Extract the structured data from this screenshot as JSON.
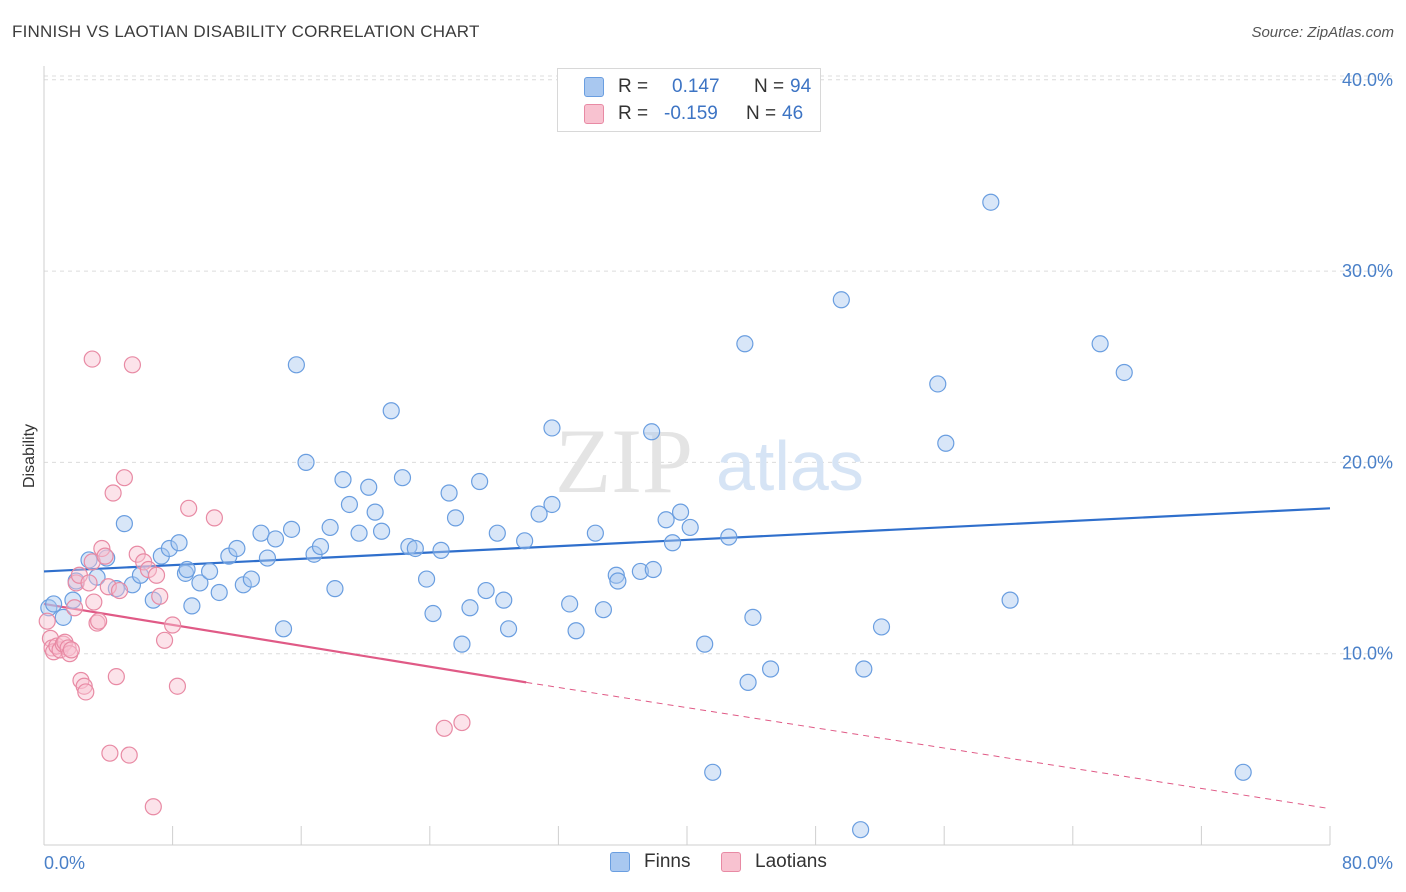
{
  "header": {
    "title": "FINNISH VS LAOTIAN DISABILITY CORRELATION CHART",
    "source": "Source: ZipAtlas.com"
  },
  "watermark": {
    "part1": "ZIP",
    "part2": "atlas"
  },
  "legend": {
    "finns": {
      "r_label": "R =",
      "r_value": "0.147",
      "n_label": "N =",
      "n_value": "94",
      "color": "#a9c8f0",
      "border": "#6a9ee0"
    },
    "laotians": {
      "r_label": "R =",
      "r_value": "-0.159",
      "n_label": "N =",
      "n_value": "46",
      "color": "#f8c2d0",
      "border": "#e88aa4"
    }
  },
  "bottom_legend": {
    "finns": "Finns",
    "laotians": "Laotians"
  },
  "chart_data": {
    "type": "scatter",
    "ylabel": "Disability",
    "xlim": [
      0,
      80
    ],
    "ylim": [
      0,
      41
    ],
    "x_ticks": [
      "0.0%",
      "80.0%"
    ],
    "y_ticks": [
      {
        "value": 10,
        "label": "10.0%"
      },
      {
        "value": 20,
        "label": "20.0%"
      },
      {
        "value": 30,
        "label": "30.0%"
      },
      {
        "value": 40,
        "label": "40.0%"
      }
    ],
    "grid": true,
    "series": [
      {
        "name": "Finns",
        "color": "#6a9ee0",
        "fill": "rgba(169,200,240,0.45)",
        "trend": {
          "x": [
            0,
            80
          ],
          "y": [
            14.3,
            17.6
          ],
          "color": "#2f6fcc"
        },
        "points": [
          [
            0.3,
            12.4
          ],
          [
            0.6,
            12.6
          ],
          [
            1.2,
            11.9
          ],
          [
            1.8,
            12.8
          ],
          [
            2.0,
            13.8
          ],
          [
            2.8,
            14.9
          ],
          [
            3.3,
            14.0
          ],
          [
            3.9,
            15.0
          ],
          [
            4.5,
            13.4
          ],
          [
            5.0,
            16.8
          ],
          [
            5.5,
            13.6
          ],
          [
            6.0,
            14.1
          ],
          [
            6.8,
            12.8
          ],
          [
            7.3,
            15.1
          ],
          [
            7.8,
            15.5
          ],
          [
            8.4,
            15.8
          ],
          [
            8.8,
            14.2
          ],
          [
            9.2,
            12.5
          ],
          [
            9.7,
            13.7
          ],
          [
            10.3,
            14.3
          ],
          [
            10.9,
            13.2
          ],
          [
            11.5,
            15.1
          ],
          [
            12.0,
            15.5
          ],
          [
            12.4,
            13.6
          ],
          [
            12.9,
            13.9
          ],
          [
            13.5,
            16.3
          ],
          [
            13.9,
            15.0
          ],
          [
            14.4,
            16.0
          ],
          [
            14.9,
            11.3
          ],
          [
            15.4,
            16.5
          ],
          [
            15.7,
            25.1
          ],
          [
            16.3,
            20.0
          ],
          [
            16.8,
            15.2
          ],
          [
            17.2,
            15.6
          ],
          [
            17.8,
            16.6
          ],
          [
            18.1,
            13.4
          ],
          [
            18.6,
            19.1
          ],
          [
            19.0,
            17.8
          ],
          [
            19.6,
            16.3
          ],
          [
            20.2,
            18.7
          ],
          [
            20.6,
            17.4
          ],
          [
            21.0,
            16.4
          ],
          [
            21.6,
            22.7
          ],
          [
            22.3,
            19.2
          ],
          [
            22.7,
            15.6
          ],
          [
            23.1,
            15.5
          ],
          [
            23.8,
            13.9
          ],
          [
            24.2,
            12.1
          ],
          [
            24.7,
            15.4
          ],
          [
            25.2,
            18.4
          ],
          [
            25.6,
            17.1
          ],
          [
            26.0,
            10.5
          ],
          [
            26.5,
            12.4
          ],
          [
            27.1,
            19.0
          ],
          [
            27.5,
            13.3
          ],
          [
            28.2,
            16.3
          ],
          [
            28.6,
            12.8
          ],
          [
            28.9,
            11.3
          ],
          [
            29.9,
            15.9
          ],
          [
            30.8,
            17.3
          ],
          [
            31.6,
            21.8
          ],
          [
            31.6,
            17.8
          ],
          [
            32.7,
            12.6
          ],
          [
            33.1,
            11.2
          ],
          [
            34.3,
            16.3
          ],
          [
            34.8,
            12.3
          ],
          [
            35.6,
            14.1
          ],
          [
            35.7,
            13.8
          ],
          [
            37.1,
            14.3
          ],
          [
            37.8,
            21.6
          ],
          [
            37.9,
            14.4
          ],
          [
            38.7,
            17.0
          ],
          [
            39.1,
            15.8
          ],
          [
            39.6,
            17.4
          ],
          [
            40.2,
            16.6
          ],
          [
            41.1,
            10.5
          ],
          [
            41.6,
            3.8
          ],
          [
            42.6,
            16.1
          ],
          [
            43.6,
            26.2
          ],
          [
            43.8,
            8.5
          ],
          [
            44.1,
            11.9
          ],
          [
            45.2,
            9.2
          ],
          [
            49.6,
            28.5
          ],
          [
            51.0,
            9.2
          ],
          [
            52.1,
            11.4
          ],
          [
            55.6,
            24.1
          ],
          [
            56.1,
            21.0
          ],
          [
            58.9,
            33.6
          ],
          [
            60.1,
            12.8
          ],
          [
            65.7,
            26.2
          ],
          [
            67.2,
            24.7
          ],
          [
            74.6,
            3.8
          ],
          [
            50.8,
            0.8
          ],
          [
            8.9,
            14.4
          ]
        ]
      },
      {
        "name": "Laotians",
        "color": "#e88aa4",
        "fill": "rgba(248,194,208,0.45)",
        "trend": {
          "x": [
            0,
            30
          ],
          "y": [
            12.6,
            8.5
          ],
          "color": "#e05a86",
          "dashed_extension": {
            "x": [
              30,
              80
            ],
            "y": [
              8.5,
              1.9
            ]
          }
        },
        "points": [
          [
            0.2,
            11.7
          ],
          [
            0.4,
            10.8
          ],
          [
            0.5,
            10.3
          ],
          [
            0.6,
            10.1
          ],
          [
            0.8,
            10.4
          ],
          [
            1.0,
            10.2
          ],
          [
            1.2,
            10.5
          ],
          [
            1.3,
            10.6
          ],
          [
            1.5,
            10.3
          ],
          [
            1.6,
            10.0
          ],
          [
            1.7,
            10.2
          ],
          [
            1.9,
            12.4
          ],
          [
            2.0,
            13.7
          ],
          [
            2.2,
            14.1
          ],
          [
            2.3,
            8.6
          ],
          [
            2.5,
            8.3
          ],
          [
            2.6,
            8.0
          ],
          [
            2.8,
            13.7
          ],
          [
            3.0,
            14.8
          ],
          [
            3.1,
            12.7
          ],
          [
            3.3,
            11.6
          ],
          [
            3.4,
            11.7
          ],
          [
            3.6,
            15.5
          ],
          [
            3.8,
            15.1
          ],
          [
            4.0,
            13.5
          ],
          [
            4.1,
            4.8
          ],
          [
            4.3,
            18.4
          ],
          [
            4.5,
            8.8
          ],
          [
            4.7,
            13.3
          ],
          [
            5.0,
            19.2
          ],
          [
            5.3,
            4.7
          ],
          [
            5.5,
            25.1
          ],
          [
            5.8,
            15.2
          ],
          [
            6.2,
            14.8
          ],
          [
            6.5,
            14.4
          ],
          [
            6.8,
            2.0
          ],
          [
            7.0,
            14.1
          ],
          [
            7.2,
            13.0
          ],
          [
            7.5,
            10.7
          ],
          [
            8.0,
            11.5
          ],
          [
            8.3,
            8.3
          ],
          [
            9.0,
            17.6
          ],
          [
            10.6,
            17.1
          ],
          [
            24.9,
            6.1
          ],
          [
            26.0,
            6.4
          ],
          [
            3.0,
            25.4
          ]
        ]
      }
    ]
  }
}
